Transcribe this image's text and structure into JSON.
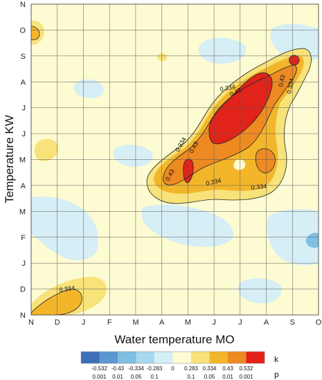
{
  "chart_data": {
    "type": "heatmap",
    "xlabel": "Water temperature MO",
    "ylabel": "Temperature KW",
    "x_ticks": [
      "N",
      "D",
      "J",
      "F",
      "M",
      "A",
      "M",
      "J",
      "J",
      "A",
      "S",
      "O"
    ],
    "y_ticks_top_to_bottom": [
      "N",
      "O",
      "S",
      "A",
      "J",
      "J",
      "M",
      "A",
      "M",
      "F",
      "J",
      "D",
      "N"
    ],
    "grid": true,
    "contour_labels": [
      "0.334",
      "0.43",
      "0.43",
      "0.334",
      "0.43",
      "0.334",
      "0.43",
      "0.334",
      "0.334",
      "0.334"
    ],
    "legend": {
      "position": "bottom",
      "key_k": "k",
      "key_p": "p",
      "k_values": [
        "-0.532",
        "-0.43",
        "-0.334",
        "-0.283",
        "0",
        "0.283",
        "0.334",
        "0.43",
        "0.532"
      ],
      "p_values": [
        "0.001",
        "0.01",
        "0.05",
        "0.1",
        "0.1",
        "0.05",
        "0.01",
        "0.001"
      ],
      "colors": [
        "#3d6fb8",
        "#5b97d0",
        "#7fbfe3",
        "#a8d8ec",
        "#d6eef5",
        "#fdfbd2",
        "#f8e27a",
        "#f3b62b",
        "#ee8a22",
        "#e2231a"
      ]
    }
  }
}
